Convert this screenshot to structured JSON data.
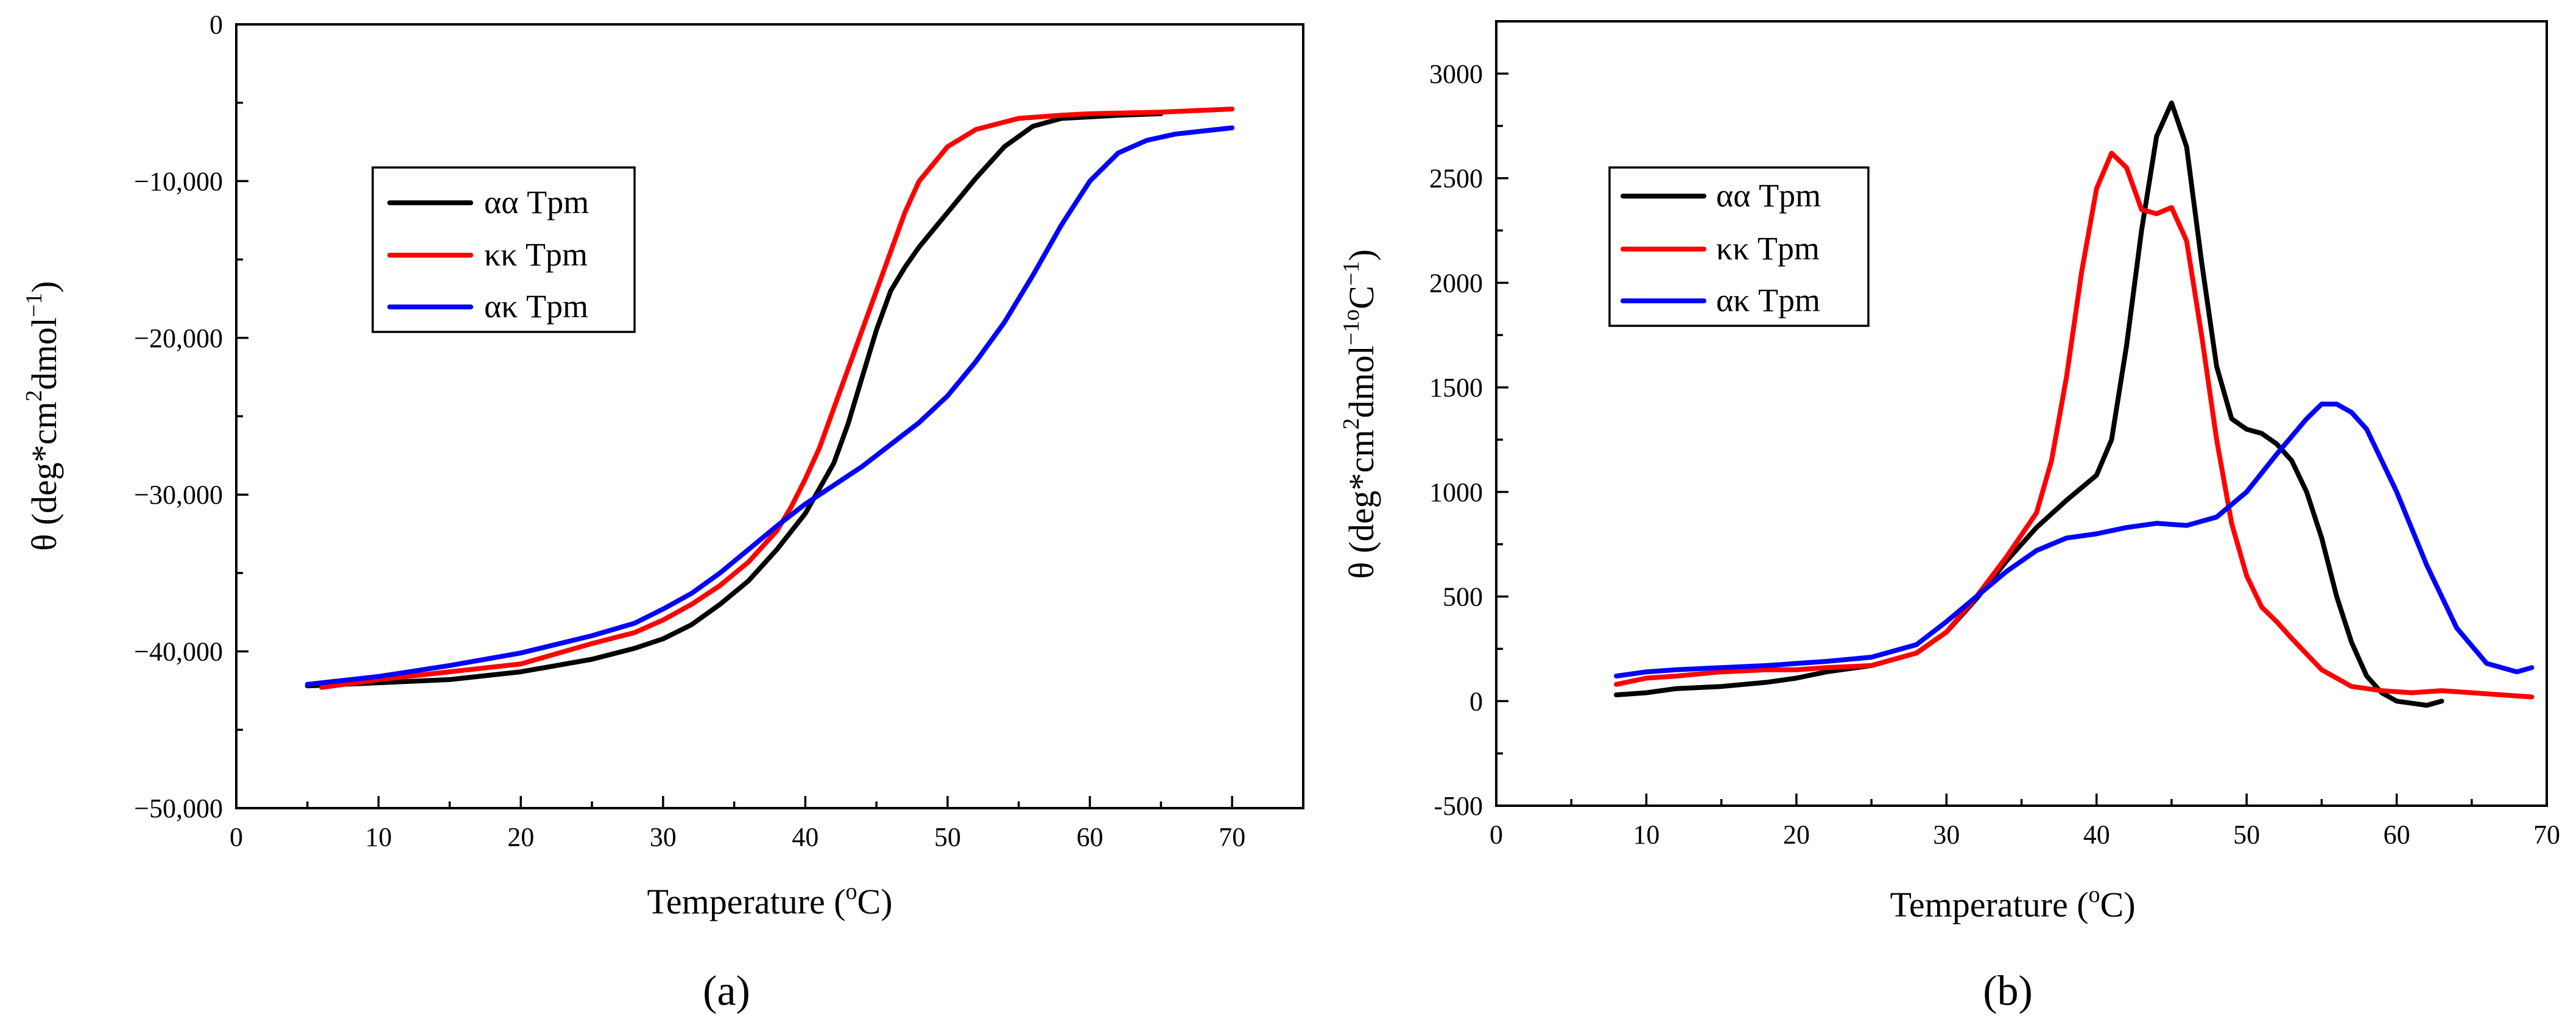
{
  "chart_data": [
    {
      "type": "line",
      "panel_label": "(a)",
      "title": "",
      "xlabel": "Temperature (oC)",
      "xlabel_parts": {
        "main": "Temperature (",
        "sup": "o",
        "tail": "C)"
      },
      "ylabel": "θ (deg*cm2dmol−1)",
      "ylabel_parts": {
        "a": "θ (deg*cm",
        "sup1": "2",
        "b": "dmol",
        "sup2": "−1",
        "c": ")"
      },
      "xlim": [
        0,
        75
      ],
      "ylim": [
        -50000,
        0
      ],
      "xticks": [
        0,
        10,
        20,
        30,
        40,
        50,
        60,
        70
      ],
      "xtick_labels": [
        "0",
        "10",
        "20",
        "30",
        "40",
        "50",
        "60",
        "70"
      ],
      "yticks": [
        0,
        -10000,
        -20000,
        -30000,
        -40000,
        -50000
      ],
      "ytick_labels": [
        "0",
        "−10,000",
        "−20,000",
        "−30,000",
        "−40,000",
        "−50,000"
      ],
      "legend_position": "upper-left",
      "series": [
        {
          "name": "αα Tpm",
          "color": "#000000",
          "x": [
            5,
            10,
            15,
            20,
            25,
            28,
            30,
            32,
            34,
            36,
            38,
            40,
            42,
            43,
            44,
            45,
            46,
            47,
            48,
            50,
            52,
            54,
            56,
            58,
            60,
            62,
            65
          ],
          "y": [
            -42200,
            -42000,
            -41800,
            -41300,
            -40500,
            -39800,
            -39200,
            -38300,
            -37000,
            -35500,
            -33500,
            -31200,
            -28000,
            -25500,
            -22500,
            -19500,
            -17000,
            -15500,
            -14200,
            -12000,
            -9800,
            -7800,
            -6500,
            -6000,
            -5900,
            -5800,
            -5700
          ]
        },
        {
          "name": "κκ Tpm",
          "color": "#ff0000",
          "x": [
            6,
            10,
            15,
            20,
            25,
            28,
            30,
            32,
            34,
            36,
            38,
            39,
            40,
            41,
            42,
            43,
            44,
            45,
            46,
            47,
            48,
            50,
            52,
            55,
            58,
            60,
            65,
            70
          ],
          "y": [
            -42300,
            -41800,
            -41300,
            -40800,
            -39500,
            -38800,
            -38000,
            -37000,
            -35800,
            -34300,
            -32300,
            -30800,
            -29000,
            -27000,
            -24500,
            -22000,
            -19500,
            -17000,
            -14500,
            -12000,
            -10000,
            -7800,
            -6700,
            -6000,
            -5800,
            -5700,
            -5600,
            -5400
          ]
        },
        {
          "name": "ακ Tpm",
          "color": "#0000ff",
          "x": [
            5,
            10,
            15,
            20,
            25,
            28,
            30,
            32,
            34,
            36,
            38,
            40,
            42,
            44,
            46,
            48,
            50,
            52,
            54,
            56,
            58,
            60,
            62,
            64,
            66,
            68,
            70
          ],
          "y": [
            -42100,
            -41600,
            -40900,
            -40100,
            -39000,
            -38200,
            -37300,
            -36300,
            -35000,
            -33500,
            -32000,
            -30600,
            -29400,
            -28200,
            -26800,
            -25400,
            -23700,
            -21500,
            -19000,
            -16000,
            -12800,
            -10000,
            -8200,
            -7400,
            -7000,
            -6800,
            -6600
          ]
        }
      ]
    },
    {
      "type": "line",
      "panel_label": "(b)",
      "title": "",
      "xlabel": "Temperature (oC)",
      "xlabel_parts": {
        "main": "Temperature (",
        "sup": "o",
        "tail": "C)"
      },
      "ylabel": "θ (deg*cm2dmol−1oC−1)",
      "ylabel_parts": {
        "a": "θ (deg*cm",
        "sup1": "2",
        "b": "dmol",
        "sup2": "−1o",
        "c": "C",
        "sup3": "−1",
        "d": ")"
      },
      "xlim": [
        0,
        70
      ],
      "ylim": [
        -500,
        3250
      ],
      "xticks": [
        0,
        10,
        20,
        30,
        40,
        50,
        60,
        70
      ],
      "xtick_labels": [
        "0",
        "10",
        "20",
        "30",
        "40",
        "50",
        "60",
        "70"
      ],
      "yticks": [
        -500,
        0,
        500,
        1000,
        1500,
        2000,
        2500,
        3000
      ],
      "ytick_labels": [
        "-500",
        "0",
        "500",
        "1000",
        "1500",
        "2000",
        "2500",
        "3000"
      ],
      "legend_position": "upper-left",
      "series": [
        {
          "name": "αα Tpm",
          "color": "#000000",
          "x": [
            8,
            10,
            12,
            15,
            18,
            20,
            22,
            25,
            28,
            30,
            32,
            34,
            36,
            38,
            40,
            41,
            42,
            43,
            44,
            45,
            46,
            47,
            48,
            49,
            50,
            51,
            52,
            53,
            54,
            55,
            56,
            57,
            58,
            59,
            60,
            61,
            62,
            63
          ],
          "y": [
            30,
            40,
            60,
            70,
            90,
            110,
            140,
            170,
            230,
            330,
            490,
            670,
            830,
            960,
            1080,
            1250,
            1700,
            2250,
            2700,
            2860,
            2650,
            2100,
            1600,
            1350,
            1300,
            1280,
            1230,
            1150,
            1000,
            780,
            500,
            280,
            120,
            40,
            0,
            -10,
            -20,
            0
          ]
        },
        {
          "name": "κκ Tpm",
          "color": "#ff0000",
          "x": [
            8,
            10,
            12,
            15,
            18,
            20,
            22,
            25,
            28,
            30,
            32,
            34,
            36,
            37,
            38,
            39,
            40,
            41,
            42,
            43,
            44,
            45,
            46,
            47,
            48,
            49,
            50,
            51,
            52,
            53,
            55,
            57,
            59,
            61,
            63,
            65,
            67,
            69
          ],
          "y": [
            80,
            110,
            120,
            140,
            150,
            150,
            160,
            170,
            230,
            330,
            500,
            690,
            900,
            1150,
            1550,
            2050,
            2450,
            2620,
            2550,
            2350,
            2330,
            2360,
            2200,
            1750,
            1250,
            850,
            600,
            450,
            380,
            300,
            150,
            70,
            50,
            40,
            50,
            40,
            30,
            20
          ]
        },
        {
          "name": "ακ Tpm",
          "color": "#0000ff",
          "x": [
            8,
            10,
            12,
            15,
            18,
            20,
            22,
            25,
            28,
            30,
            32,
            34,
            36,
            38,
            40,
            42,
            44,
            46,
            48,
            50,
            52,
            54,
            55,
            56,
            57,
            58,
            60,
            62,
            64,
            66,
            68,
            69
          ],
          "y": [
            120,
            140,
            150,
            160,
            170,
            180,
            190,
            210,
            270,
            380,
            500,
            620,
            720,
            780,
            800,
            830,
            850,
            840,
            880,
            1000,
            1180,
            1350,
            1420,
            1420,
            1380,
            1300,
            1000,
            650,
            350,
            180,
            140,
            160
          ]
        }
      ]
    }
  ]
}
